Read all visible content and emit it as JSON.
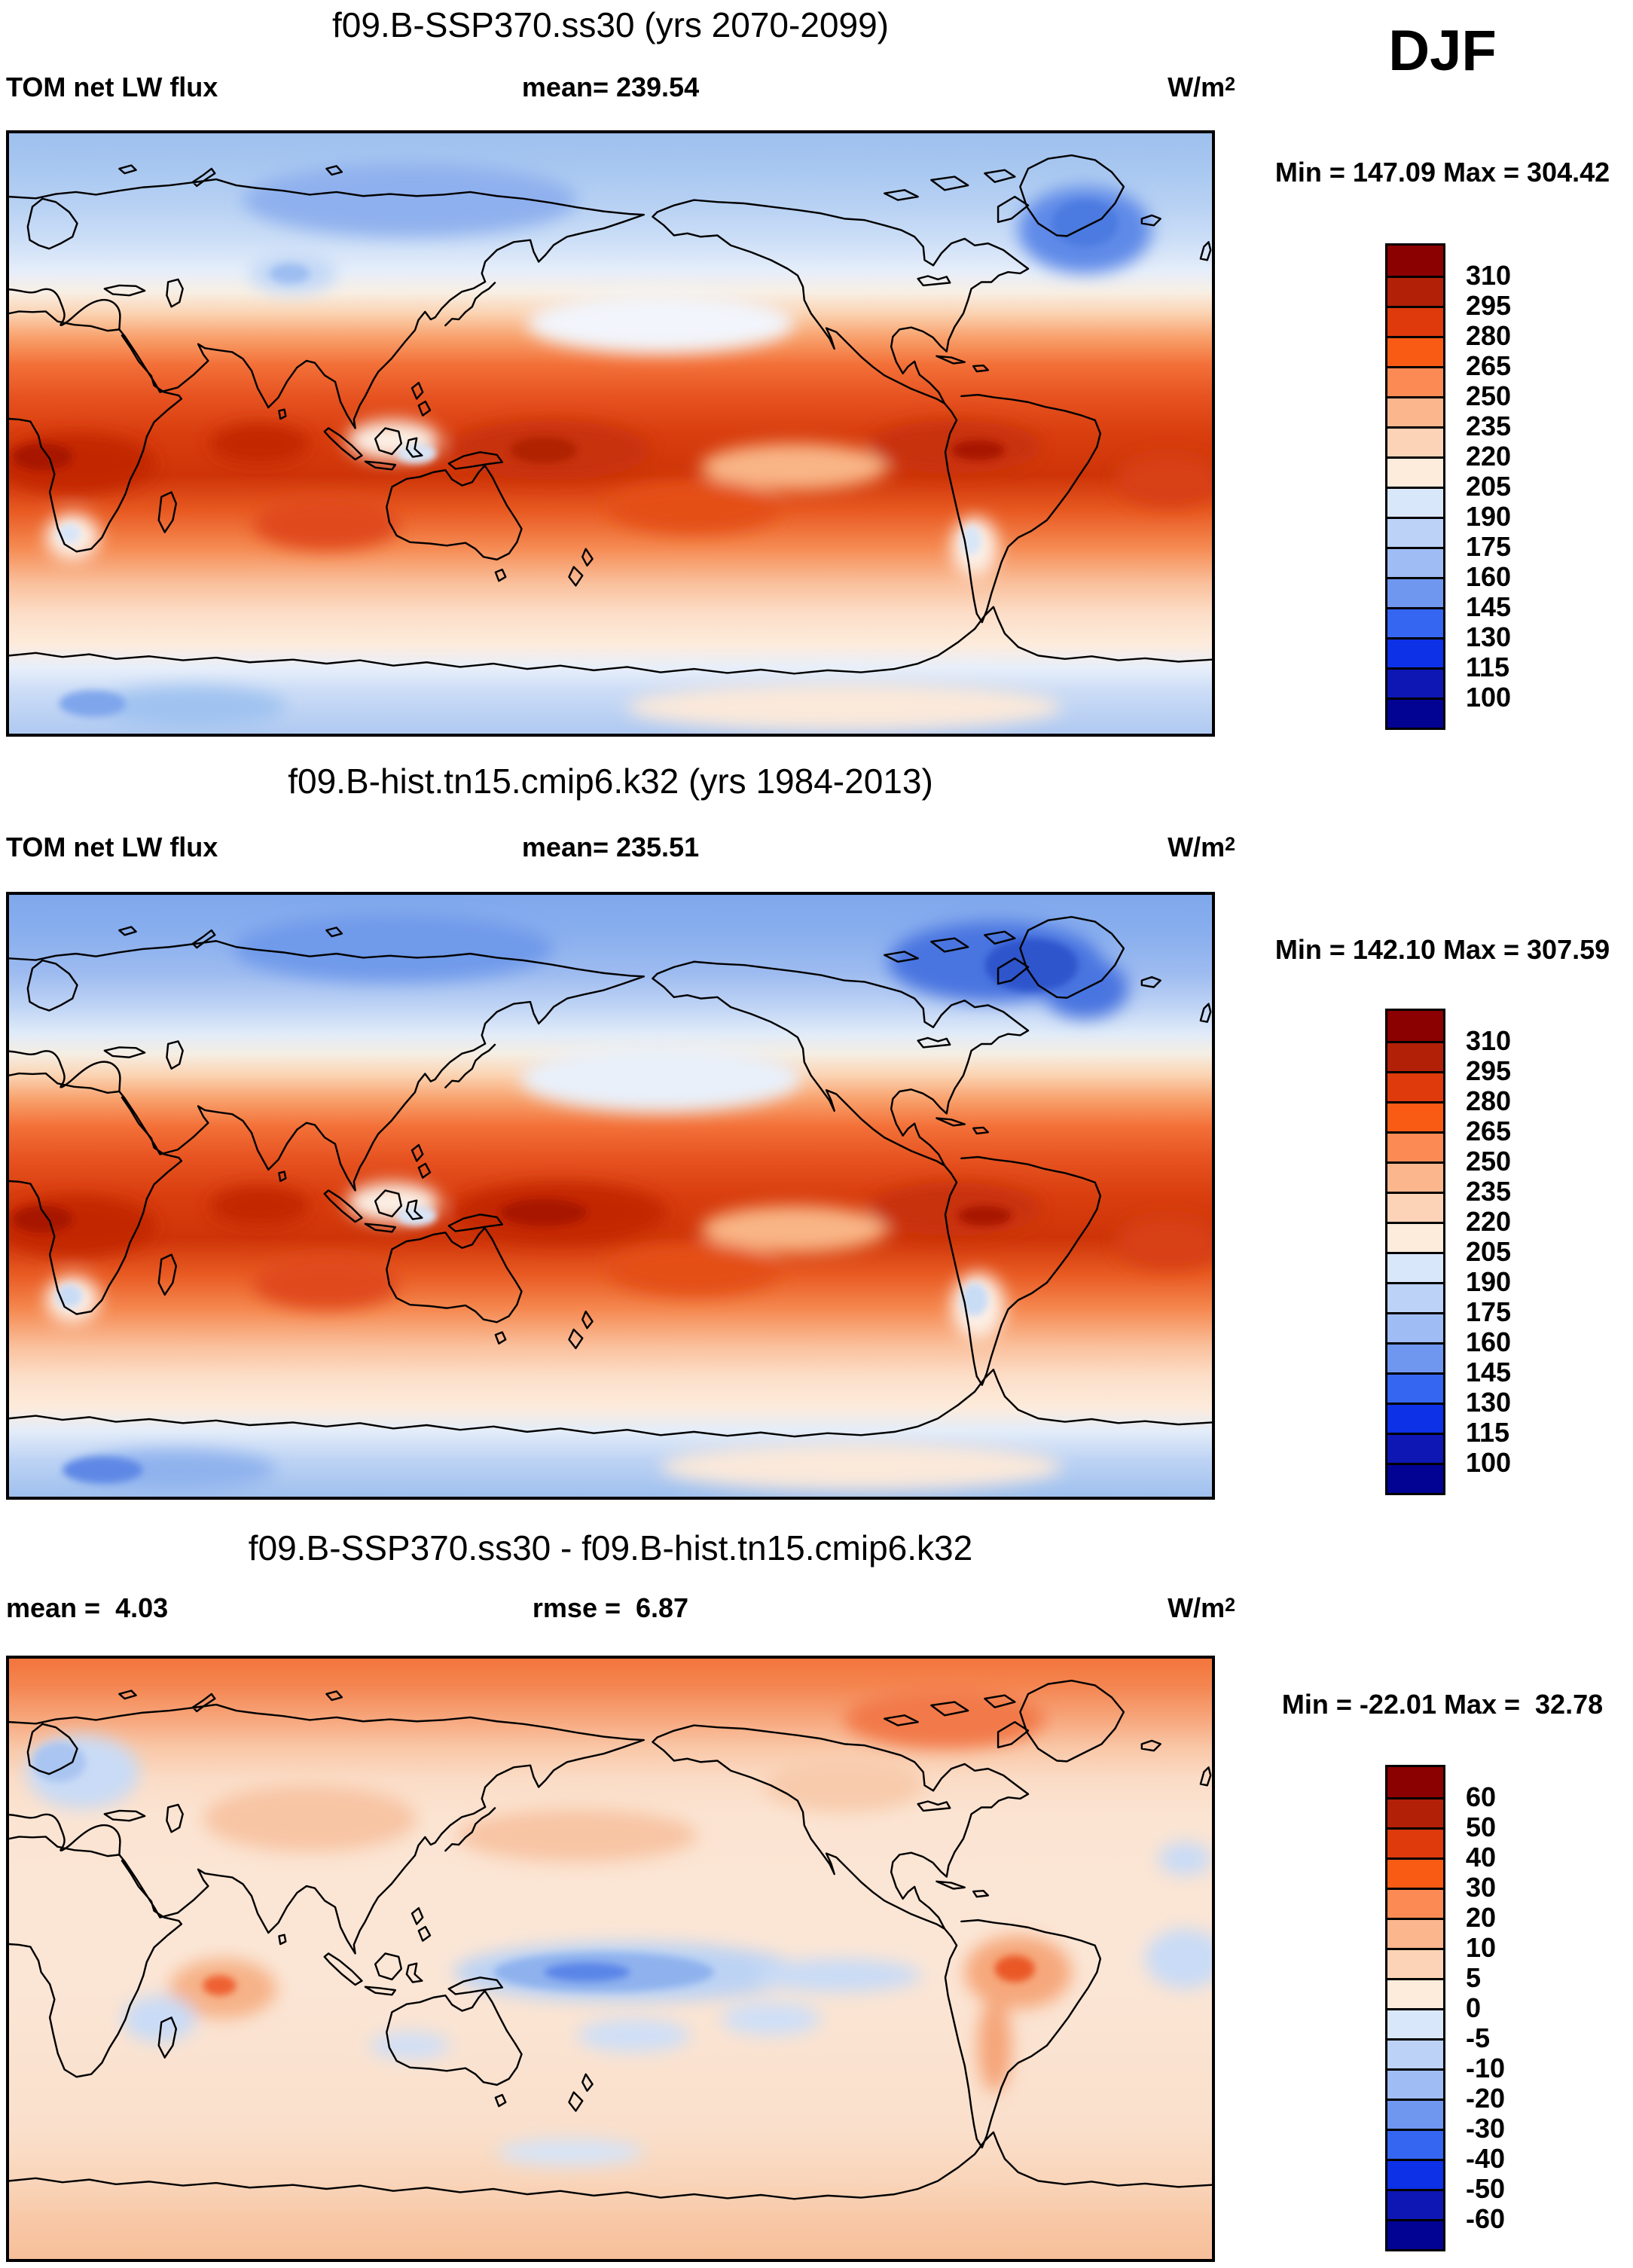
{
  "page": {
    "season_label": "DJF",
    "background": "#ffffff"
  },
  "palette": {
    "levels_colors": [
      "#8B0000",
      "#B22008",
      "#DE3A0C",
      "#FA5B14",
      "#FC8A54",
      "#FBB68E",
      "#FCD3B6",
      "#FDEBDB",
      "#D9E7FB",
      "#BCD2F7",
      "#A0BCF4",
      "#6F97F0",
      "#3566F2",
      "#0C31E6",
      "#0E17B4",
      "#020293"
    ],
    "coastline_color": "#000000"
  },
  "panels": [
    {
      "title": "f09.B-SSP370.ss30 (yrs 2070-2099)",
      "variable": "TOM net LW flux",
      "mean_label": "mean= 239.54",
      "units_base": "W/m",
      "units_exp": "2",
      "minmax": "Min = 147.09 Max = 304.42",
      "colorbar": {
        "ticks": [
          "310",
          "295",
          "280",
          "265",
          "250",
          "235",
          "220",
          "205",
          "190",
          "175",
          "160",
          "145",
          "130",
          "115",
          "100"
        ]
      }
    },
    {
      "title": "f09.B-hist.tn15.cmip6.k32 (yrs 1984-2013)",
      "variable": "TOM net LW flux",
      "mean_label": "mean= 235.51",
      "units_base": "W/m",
      "units_exp": "2",
      "minmax": "Min = 142.10 Max = 307.59",
      "colorbar": {
        "ticks": [
          "310",
          "295",
          "280",
          "265",
          "250",
          "235",
          "220",
          "205",
          "190",
          "175",
          "160",
          "145",
          "130",
          "115",
          "100"
        ]
      }
    },
    {
      "title": "f09.B-SSP370.ss30 - f09.B-hist.tn15.cmip6.k32",
      "mean_label": "mean =  4.03",
      "rmse_label": "rmse =  6.87",
      "units_base": "W/m",
      "units_exp": "2",
      "minmax": "Min = -22.01 Max =  32.78",
      "colorbar": {
        "ticks": [
          "60",
          "50",
          "40",
          "30",
          "20",
          "10",
          "5",
          "0",
          "-5",
          "-10",
          "-20",
          "-30",
          "-40",
          "-50",
          "-60"
        ]
      }
    }
  ],
  "chart_data": [
    {
      "type": "heatmap",
      "subtype": "filled-contour-global-map",
      "title": "f09.B-SSP370.ss30 (yrs 2070-2099)",
      "variable": "TOM net LW flux",
      "season": "DJF",
      "units": "W/m2",
      "mean": 239.54,
      "min": 147.09,
      "max": 304.42,
      "contour_levels": [
        100,
        115,
        130,
        145,
        160,
        175,
        190,
        205,
        220,
        235,
        250,
        265,
        280,
        295,
        310
      ],
      "legend_position": "right",
      "projection": "equirectangular, lon 0E-360E, lat 90N-90S",
      "pattern": "high LW flux (dark red, 280-310) across tropics esp. Africa, Indian Ocean, W Pacific, S America; low (blue, 100-190) over Arctic, Greenland and Antarctica"
    },
    {
      "type": "heatmap",
      "subtype": "filled-contour-global-map",
      "title": "f09.B-hist.tn15.cmip6.k32 (yrs 1984-2013)",
      "variable": "TOM net LW flux",
      "season": "DJF",
      "units": "W/m2",
      "mean": 235.51,
      "min": 142.1,
      "max": 307.59,
      "contour_levels": [
        100,
        115,
        130,
        145,
        160,
        175,
        190,
        205,
        220,
        235,
        250,
        265,
        280,
        295,
        310
      ],
      "legend_position": "right",
      "projection": "equirectangular, lon 0E-360E, lat 90N-90S",
      "pattern": "same structure as SSP370 panel but deeper blues (130-160) over high-latitude N America/Greenland and Siberia"
    },
    {
      "type": "heatmap",
      "subtype": "filled-contour-global-map-difference",
      "title": "f09.B-SSP370.ss30 - f09.B-hist.tn15.cmip6.k32",
      "variable": "TOM net LW flux difference",
      "season": "DJF",
      "units": "W/m2",
      "mean": 4.03,
      "rmse": 6.87,
      "min": -22.01,
      "max": 32.78,
      "contour_levels": [
        -60,
        -50,
        -40,
        -30,
        -20,
        -10,
        -5,
        0,
        5,
        10,
        20,
        30,
        40,
        50,
        60
      ],
      "legend_position": "right",
      "projection": "equirectangular, lon 0E-360E, lat 90N-90S",
      "pattern": "positive (orange, 10-30) band across Arctic; mostly weak positive (0-10) elsewhere; negative (blue, -5 to -20) band along equatorial west-central Pacific; local positive maxima over Amazonia and S Indian Ocean"
    }
  ]
}
